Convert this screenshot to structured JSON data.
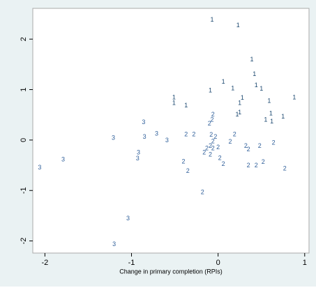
{
  "chart_data": {
    "type": "scatter",
    "x_label": "Change in primary completion (RPIs)",
    "xlim": [
      -2.14,
      1.05
    ],
    "ylim": [
      -2.24,
      2.61
    ],
    "xticks": [
      -2,
      -1,
      0,
      1
    ],
    "yticks": [
      -2,
      -1,
      0,
      1,
      2
    ],
    "series": [
      {
        "marker_label": "1",
        "color": "#1a476f",
        "x": [
          -0.07,
          0.23,
          0.39,
          0.42,
          0.06,
          0.17,
          0.44,
          0.5,
          -0.09,
          -0.51,
          -0.51,
          -0.37,
          0.28,
          0.25,
          0.59,
          0.88,
          0.25,
          0.22,
          0.61,
          0.55,
          0.62,
          0.75
        ],
        "y": [
          2.38,
          2.27,
          1.59,
          1.3,
          1.15,
          1.02,
          1.08,
          1.01,
          0.98,
          0.84,
          0.73,
          0.68,
          0.83,
          0.73,
          0.77,
          0.84,
          0.54,
          0.5,
          0.52,
          0.4,
          0.36,
          0.46
        ]
      },
      {
        "marker_label": "2",
        "color": "#2f5f9a",
        "x": [
          -0.06,
          -0.07,
          -0.1,
          -0.37,
          -0.28,
          -0.08,
          -0.03,
          0.19,
          0.14,
          -0.06,
          -0.09,
          -0.13,
          -0.06,
          0.0,
          -0.16,
          -0.09,
          0.02,
          0.06,
          -0.4,
          -0.35,
          0.32,
          0.35,
          0.48,
          0.64,
          0.35,
          0.44,
          0.52,
          0.77,
          -0.18
        ],
        "y": [
          0.5,
          0.4,
          0.32,
          0.11,
          0.11,
          0.1,
          0.06,
          0.11,
          -0.04,
          -0.03,
          -0.12,
          -0.17,
          -0.17,
          -0.15,
          -0.25,
          -0.29,
          -0.36,
          -0.48,
          -0.43,
          -0.62,
          -0.12,
          -0.19,
          -0.12,
          -0.06,
          -0.51,
          -0.51,
          -0.44,
          -0.57,
          -1.04
        ]
      },
      {
        "marker_label": "3",
        "color": "#2f5f9a",
        "x": [
          -0.86,
          -1.21,
          -0.85,
          -0.71,
          -0.59,
          -0.92,
          -0.93,
          -1.79,
          -2.06,
          -1.04,
          -1.2
        ],
        "y": [
          0.35,
          0.04,
          0.06,
          0.12,
          -0.01,
          -0.25,
          -0.37,
          -0.39,
          -0.55,
          -1.56,
          -2.07
        ]
      }
    ]
  }
}
